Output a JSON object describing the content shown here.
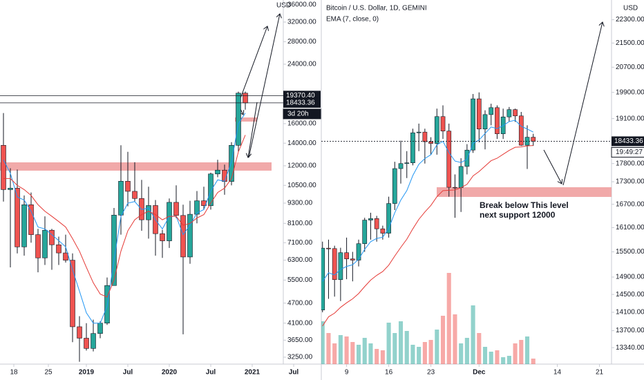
{
  "chart_data": [
    {
      "type": "candlestick",
      "currency": "USD",
      "log_scale": true,
      "xlim": [
        -0.5,
        40.5
      ],
      "ylim": [
        3100,
        37200
      ],
      "xticks": [
        {
          "value": 1.5,
          "label": "18"
        },
        {
          "value": 6.5,
          "label": "25"
        },
        {
          "value": 12,
          "label": "2019"
        },
        {
          "value": 18,
          "label": "Jul"
        },
        {
          "value": 24,
          "label": "2020"
        },
        {
          "value": 30,
          "label": "Jul"
        },
        {
          "value": 36,
          "label": "2021"
        },
        {
          "value": 42,
          "label": "Jul"
        }
      ],
      "yticks": [
        {
          "value": 3250,
          "label": "3250.00"
        },
        {
          "value": 3650,
          "label": "3650.00"
        },
        {
          "value": 4100,
          "label": "4100.00"
        },
        {
          "value": 4700,
          "label": "4700.00"
        },
        {
          "value": 5500,
          "label": "5500.00"
        },
        {
          "value": 6300,
          "label": "6300.00"
        },
        {
          "value": 7100,
          "label": "7100.00"
        },
        {
          "value": 8100,
          "label": "8100.00"
        },
        {
          "value": 9300,
          "label": "9300.00"
        },
        {
          "value": 10500,
          "label": "10500.00"
        },
        {
          "value": 12000,
          "label": "12000.00"
        },
        {
          "value": 14000,
          "label": "14000.00"
        },
        {
          "value": 16000,
          "label": "16000.00"
        },
        {
          "value": 24000,
          "label": "24000.00"
        },
        {
          "value": 28000,
          "label": "28000.00"
        },
        {
          "value": 32000,
          "label": "32000.00"
        },
        {
          "value": 36000,
          "label": "36000.00"
        }
      ],
      "up_color": "#26a69a",
      "down_color": "#ef5350",
      "open": [
        13800,
        10200,
        10300,
        6900,
        9200,
        7500,
        6400,
        7730,
        7000,
        6620,
        6300,
        4000,
        3700,
        3450,
        3820,
        4100,
        5300,
        8570,
        10800,
        10080,
        9600,
        8300,
        9150,
        7550,
        7190,
        9350,
        8550,
        6440,
        8620,
        9450,
        9140,
        11350,
        11650,
        10780,
        13800,
        19700
      ],
      "high": [
        17200,
        11800,
        11700,
        9800,
        10000,
        7800,
        8500,
        7800,
        7400,
        7500,
        6600,
        4300,
        4100,
        4200,
        4150,
        5600,
        9000,
        13800,
        13200,
        12300,
        10900,
        10400,
        9500,
        7750,
        9600,
        10500,
        9200,
        9450,
        10100,
        10400,
        11450,
        12500,
        12100,
        14100,
        19900,
        19920
      ],
      "low": [
        9400,
        6000,
        6600,
        6500,
        7100,
        5800,
        6100,
        5900,
        6100,
        6200,
        3600,
        3150,
        3400,
        3380,
        3700,
        4050,
        5300,
        7500,
        9100,
        9400,
        7700,
        7300,
        6500,
        6400,
        6850,
        8400,
        3800,
        6150,
        8100,
        8900,
        8900,
        11100,
        9850,
        10500,
        13200,
        17600
      ],
      "close": [
        10200,
        10300,
        6900,
        9200,
        7500,
        6400,
        7730,
        7000,
        6620,
        6300,
        4000,
        3700,
        3450,
        3820,
        4100,
        5300,
        8570,
        10800,
        10080,
        9600,
        8300,
        9150,
        7550,
        7190,
        9350,
        8550,
        6440,
        8620,
        9450,
        9140,
        11350,
        11650,
        10780,
        13800,
        19700,
        18433.36
      ],
      "lines": [
        {
          "color": "#2196f3",
          "values": [
            12500,
            11400,
            9700,
            9500,
            8800,
            7900,
            7800,
            7500,
            7200,
            6900,
            5900,
            5100,
            4400,
            4100,
            4100,
            4600,
            6300,
            8500,
            9300,
            9400,
            8900,
            9000,
            8300,
            7800,
            8500,
            8500,
            7500,
            8000,
            8700,
            8900,
            10100,
            10900,
            10800,
            12300,
            16000,
            17200
          ]
        },
        {
          "color": "#e53935",
          "values": [
            11000,
            11000,
            10500,
            10200,
            9800,
            9200,
            8800,
            8500,
            8200,
            7900,
            7300,
            6700,
            6000,
            5400,
            5000,
            4900,
            5500,
            6700,
            7700,
            8300,
            8600,
            8800,
            8600,
            8300,
            8500,
            8500,
            8000,
            8100,
            8400,
            8600,
            9300,
            10000,
            10300,
            11000,
            13200,
            14800
          ]
        }
      ],
      "price_lines": [
        {
          "value": 19370.4,
          "label": "19370.40"
        },
        {
          "value": 18433.36,
          "label": "18433.36"
        }
      ],
      "countdown": "3d 20h"
    },
    {
      "type": "candlestick",
      "title": "Bitcoin / U.S. Dollar, 1D, GEMINI",
      "indicator": "EMA (7, close, 0)",
      "currency": "USD",
      "log_scale": true,
      "xlim": [
        -0.2,
        48
      ],
      "ylim": [
        13000,
        23000
      ],
      "xticks": [
        {
          "value": 4,
          "label": "9"
        },
        {
          "value": 11,
          "label": "16"
        },
        {
          "value": 18,
          "label": "23"
        },
        {
          "value": 26,
          "label": "Dec"
        },
        {
          "value": 39,
          "label": "14"
        },
        {
          "value": 46,
          "label": "21"
        }
      ],
      "yticks": [
        {
          "value": 13340,
          "label": "13340.00"
        },
        {
          "value": 13700,
          "label": "13700.00"
        },
        {
          "value": 14100,
          "label": "14100.00"
        },
        {
          "value": 14500,
          "label": "14500.00"
        },
        {
          "value": 14900,
          "label": "14900.00"
        },
        {
          "value": 15500,
          "label": "15500.00"
        },
        {
          "value": 16100,
          "label": "16100.00"
        },
        {
          "value": 16700,
          "label": "16700.00"
        },
        {
          "value": 17300,
          "label": "17300.00"
        },
        {
          "value": 17800,
          "label": "17800.00"
        },
        {
          "value": 19100,
          "label": "19100.00"
        },
        {
          "value": 19900,
          "label": "19900.00"
        },
        {
          "value": 20700,
          "label": "20700.00"
        },
        {
          "value": 21500,
          "label": "21500.00"
        },
        {
          "value": 22300,
          "label": "22300.00"
        }
      ],
      "up_color": "#26a69a",
      "down_color": "#ef5350",
      "open": [
        14150,
        15590,
        15580,
        14840,
        15480,
        15330,
        15300,
        15700,
        16290,
        16330,
        16070,
        15960,
        16720,
        17660,
        17800,
        17820,
        18680,
        18700,
        18420,
        18370,
        19160,
        18730,
        17150,
        17140,
        17720,
        18180,
        19700,
        18790,
        19220,
        19430,
        18650,
        19150,
        19370,
        19180,
        18320,
        18550
      ],
      "high": [
        15750,
        15800,
        15650,
        15600,
        15850,
        15500,
        15800,
        16350,
        16480,
        16400,
        16150,
        16900,
        17850,
        18450,
        18150,
        18800,
        18950,
        18800,
        18550,
        19400,
        19500,
        18950,
        17500,
        17950,
        18350,
        19850,
        19900,
        19350,
        19550,
        19500,
        19400,
        19450,
        19400,
        19300,
        18900,
        18650
      ],
      "low": [
        14100,
        14400,
        14450,
        14350,
        14850,
        14800,
        15150,
        15500,
        15800,
        15750,
        15800,
        15850,
        16550,
        17250,
        17400,
        17750,
        18150,
        17800,
        18050,
        18050,
        18500,
        16900,
        16350,
        16500,
        17500,
        18100,
        18400,
        18200,
        18900,
        18500,
        18500,
        19000,
        19000,
        18300,
        17650,
        18300
      ],
      "close": [
        15590,
        15580,
        14840,
        15480,
        15330,
        15300,
        15700,
        16290,
        16330,
        16070,
        15960,
        16720,
        17660,
        17800,
        17820,
        18680,
        18700,
        18420,
        18370,
        19160,
        18730,
        17150,
        17140,
        17720,
        18180,
        19700,
        18790,
        19220,
        19430,
        18650,
        19150,
        19370,
        19180,
        18320,
        18550,
        18433.36
      ],
      "volume": [
        62,
        45,
        30,
        42,
        40,
        32,
        28,
        38,
        30,
        22,
        20,
        60,
        45,
        62,
        48,
        28,
        25,
        32,
        35,
        50,
        70,
        132,
        72,
        30,
        38,
        85,
        45,
        25,
        18,
        20,
        10,
        12,
        30,
        35,
        40,
        8
      ],
      "lines": [
        {
          "color": "#2196f3",
          "values": [
            14800,
            15000,
            14950,
            15080,
            15150,
            15190,
            15320,
            15560,
            15750,
            15830,
            15860,
            16080,
            16480,
            16810,
            17060,
            17470,
            17780,
            17940,
            18050,
            18330,
            18430,
            18110,
            17870,
            17830,
            17920,
            18370,
            18470,
            18660,
            18850,
            18800,
            18890,
            19010,
            19050,
            18870,
            18790,
            18700
          ]
        },
        {
          "color": "#e53935",
          "values": [
            13800,
            14000,
            14080,
            14210,
            14310,
            14400,
            14520,
            14680,
            14830,
            14940,
            15030,
            15180,
            15400,
            15610,
            15810,
            16070,
            16310,
            16500,
            16670,
            16900,
            17060,
            17070,
            17080,
            17140,
            17230,
            17460,
            17580,
            17730,
            17880,
            17950,
            18060,
            18170,
            18260,
            18270,
            18300,
            18310
          ]
        }
      ],
      "price_lines": [
        {
          "value": 18433.36,
          "label": "18433.36"
        }
      ],
      "countdown": "19:49:27",
      "annotation": [
        "Break below  This level",
        "next support 12000"
      ]
    }
  ]
}
